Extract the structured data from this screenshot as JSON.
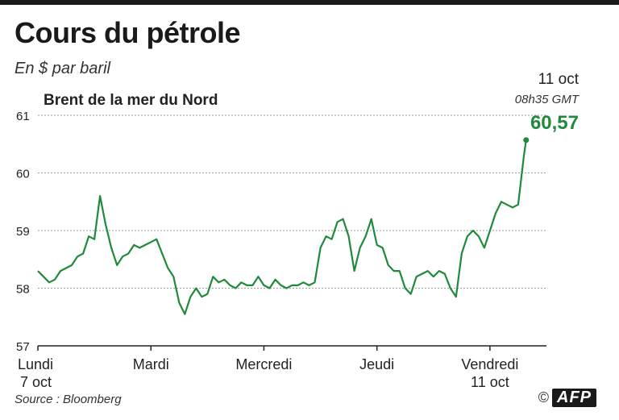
{
  "title": "Cours du pétrole",
  "subtitle": "En $ par baril",
  "source": "Source : Bloomberg",
  "credit": {
    "copyright_symbol": "©",
    "agency": "AFP"
  },
  "annotation": {
    "date": "11 oct",
    "time": "08h35 GMT",
    "value": "60,57"
  },
  "colors": {
    "line": "#1f8a3c",
    "grid": "#9a9a9a",
    "axis": "#222222"
  },
  "chart_data": {
    "type": "line",
    "title": "Cours du pétrole",
    "subtitle": "En $ par baril",
    "ylim": [
      57,
      61
    ],
    "yticks": [
      57,
      58,
      59,
      60,
      61
    ],
    "ytick_labels": [
      "57",
      "58",
      "59",
      "60",
      "61"
    ],
    "grid": true,
    "x_range": [
      0,
      4.5
    ],
    "xticks": [
      {
        "x": 0,
        "line1": "Lundi",
        "line2": "7 oct"
      },
      {
        "x": 1,
        "line1": "Mardi",
        "line2": ""
      },
      {
        "x": 2,
        "line1": "Mercredi",
        "line2": ""
      },
      {
        "x": 3,
        "line1": "Jeudi",
        "line2": ""
      },
      {
        "x": 4,
        "line1": "Vendredi",
        "line2": "11 oct"
      }
    ],
    "series": [
      {
        "name": "Brent de la mer du Nord",
        "x": [
          0,
          0.05,
          0.1,
          0.15,
          0.2,
          0.25,
          0.3,
          0.35,
          0.4,
          0.45,
          0.5,
          0.55,
          0.6,
          0.65,
          0.7,
          0.75,
          0.8,
          0.85,
          0.9,
          0.95,
          1.0,
          1.05,
          1.1,
          1.15,
          1.2,
          1.25,
          1.3,
          1.35,
          1.4,
          1.45,
          1.5,
          1.55,
          1.6,
          1.65,
          1.7,
          1.75,
          1.8,
          1.85,
          1.9,
          1.95,
          2.0,
          2.05,
          2.1,
          2.15,
          2.2,
          2.25,
          2.3,
          2.35,
          2.4,
          2.45,
          2.5,
          2.55,
          2.6,
          2.65,
          2.7,
          2.75,
          2.8,
          2.85,
          2.9,
          2.95,
          3.0,
          3.05,
          3.1,
          3.15,
          3.2,
          3.25,
          3.3,
          3.35,
          3.4,
          3.45,
          3.5,
          3.55,
          3.6,
          3.65,
          3.7,
          3.75,
          3.8,
          3.85,
          3.9,
          3.95,
          4.0,
          4.05,
          4.1,
          4.15,
          4.2,
          4.25,
          4.3,
          4.32
        ],
        "values": [
          58.3,
          58.2,
          58.1,
          58.15,
          58.3,
          58.35,
          58.4,
          58.55,
          58.6,
          58.9,
          58.85,
          59.6,
          59.1,
          58.7,
          58.4,
          58.55,
          58.6,
          58.75,
          58.7,
          58.75,
          58.8,
          58.85,
          58.6,
          58.35,
          58.2,
          57.75,
          57.55,
          57.85,
          58.0,
          57.85,
          57.9,
          58.2,
          58.1,
          58.15,
          58.05,
          58.0,
          58.1,
          58.05,
          58.05,
          58.2,
          58.05,
          58.0,
          58.15,
          58.05,
          58.0,
          58.05,
          58.05,
          58.1,
          58.05,
          58.1,
          58.7,
          58.9,
          58.85,
          59.15,
          59.2,
          58.9,
          58.3,
          58.7,
          58.9,
          59.2,
          58.75,
          58.7,
          58.4,
          58.3,
          58.3,
          58.0,
          57.9,
          58.2,
          58.25,
          58.3,
          58.2,
          58.3,
          58.25,
          58.0,
          57.85,
          58.6,
          58.9,
          59.0,
          58.9,
          58.7,
          59.0,
          59.3,
          59.5,
          59.45,
          59.4,
          59.45,
          60.3,
          60.57
        ]
      }
    ]
  }
}
